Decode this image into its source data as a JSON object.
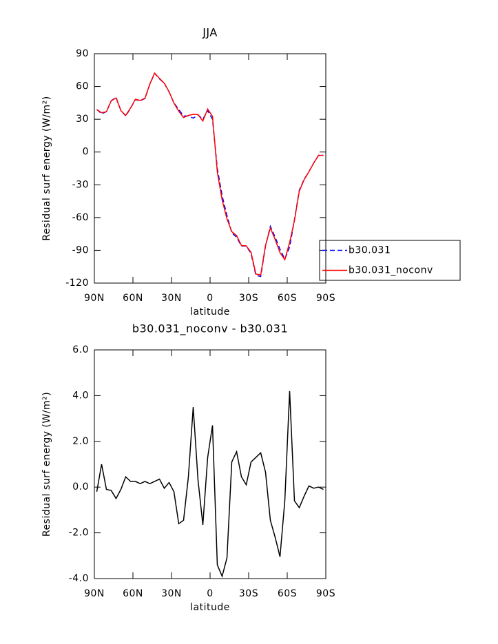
{
  "chart_data": [
    {
      "type": "line",
      "title": "JJA",
      "xlabel": "latitude",
      "ylabel": "Residual surf energy (W/m²)",
      "x": [
        88.125,
        84.375,
        80.625,
        76.875,
        73.125,
        69.375,
        65.625,
        61.875,
        58.125,
        54.375,
        50.625,
        46.875,
        43.125,
        39.375,
        35.625,
        31.875,
        28.125,
        24.375,
        20.625,
        16.875,
        13.125,
        9.375,
        5.625,
        1.875,
        -1.875,
        -5.625,
        -9.375,
        -13.125,
        -16.875,
        -20.625,
        -24.375,
        -28.125,
        -31.875,
        -35.625,
        -39.375,
        -43.125,
        -46.875,
        -50.625,
        -54.375,
        -58.125,
        -61.875,
        -65.625,
        -69.375,
        -73.125,
        -76.875,
        -80.625,
        -84.375,
        -88.125
      ],
      "series": [
        {
          "name": "b30.031",
          "color": "#0000ff",
          "dash": true,
          "values": [
            39,
            35,
            37,
            47,
            50,
            38,
            33,
            40,
            48,
            47,
            49,
            62,
            72,
            67,
            63,
            55,
            45,
            39,
            33,
            33,
            31,
            34,
            30,
            38,
            30,
            -15,
            -40,
            -58,
            -74,
            -78,
            -86,
            -86,
            -93,
            -113,
            -114,
            -86,
            -68,
            -78,
            -89,
            -98,
            -87,
            -62,
            -35,
            -25,
            -18,
            -10,
            -3,
            -3
          ]
        },
        {
          "name": "b30.031_noconv",
          "color": "#ff0000",
          "dash": false,
          "values": [
            38.8,
            36,
            36.9,
            46.9,
            49.5,
            37.9,
            33.5,
            40.3,
            48.3,
            47.2,
            49.3,
            62.2,
            72.3,
            67.4,
            63,
            55.2,
            44.8,
            37.4,
            31.6,
            33.5,
            34.5,
            34.3,
            28.4,
            39.3,
            32.7,
            -18.4,
            -43.9,
            -61.1,
            -72.9,
            -76.5,
            -85.6,
            -85.9,
            -91.9,
            -111.7,
            -112.5,
            -85.4,
            -69.5,
            -80.2,
            -92.1,
            -98.6,
            -82.8,
            -62.6,
            -35.9,
            -25.4,
            -18,
            -10.1,
            -3,
            -3.1
          ]
        }
      ],
      "xlim": [
        90,
        -90
      ],
      "xticks": [
        {
          "value": 90,
          "label": "90N"
        },
        {
          "value": 60,
          "label": "60N"
        },
        {
          "value": 30,
          "label": "30N"
        },
        0,
        {
          "value": -30,
          "label": "30S"
        },
        {
          "value": -60,
          "label": "60S"
        },
        {
          "value": -90,
          "label": "90S"
        }
      ],
      "ylim": [
        -120,
        90
      ],
      "yticks": [
        -120,
        -90,
        -60,
        -30,
        0,
        30,
        60,
        90
      ],
      "legend": "right"
    },
    {
      "type": "line",
      "title": "b30.031_noconv - b30.031",
      "xlabel": "latitude",
      "ylabel": "Residual surf energy (W/m²)",
      "x": [
        88.125,
        84.375,
        80.625,
        76.875,
        73.125,
        69.375,
        65.625,
        61.875,
        58.125,
        54.375,
        50.625,
        46.875,
        43.125,
        39.375,
        35.625,
        31.875,
        28.125,
        24.375,
        20.625,
        16.875,
        13.125,
        9.375,
        5.625,
        1.875,
        -1.875,
        -5.625,
        -9.375,
        -13.125,
        -16.875,
        -20.625,
        -24.375,
        -28.125,
        -31.875,
        -35.625,
        -39.375,
        -43.125,
        -46.875,
        -50.625,
        -54.375,
        -58.125,
        -61.875,
        -65.625,
        -69.375,
        -73.125,
        -76.875,
        -80.625,
        -84.375,
        -88.125
      ],
      "series": [
        {
          "color": "#000000",
          "dash": false,
          "values": [
            -0.2,
            1.0,
            -0.1,
            -0.15,
            -0.5,
            -0.1,
            0.45,
            0.25,
            0.25,
            0.15,
            0.25,
            0.15,
            0.25,
            0.35,
            -0.05,
            0.2,
            -0.2,
            -1.6,
            -1.45,
            0.45,
            3.5,
            0.3,
            -1.65,
            1.3,
            2.7,
            -3.4,
            -3.9,
            -3.1,
            1.1,
            1.55,
            0.45,
            0.1,
            1.1,
            1.3,
            1.5,
            0.65,
            -1.45,
            -2.2,
            -3.05,
            -0.6,
            4.2,
            -0.6,
            -0.9,
            -0.4,
            0.05,
            -0.05,
            0.0,
            -0.1
          ]
        }
      ],
      "xlim": [
        90,
        -90
      ],
      "xticks": [
        {
          "value": 90,
          "label": "90N"
        },
        {
          "value": 60,
          "label": "60N"
        },
        {
          "value": 30,
          "label": "30N"
        },
        0,
        {
          "value": -30,
          "label": "30S"
        },
        {
          "value": -60,
          "label": "60S"
        },
        {
          "value": -90,
          "label": "90S"
        }
      ],
      "ylim": [
        -4,
        6
      ],
      "yticks": [
        {
          "value": -4,
          "label": "-4.0"
        },
        {
          "value": -2,
          "label": "-2.0"
        },
        {
          "value": 0,
          "label": "0.0"
        },
        {
          "value": 2,
          "label": "2.0"
        },
        {
          "value": 4,
          "label": "4.0"
        },
        {
          "value": 6,
          "label": "6.0"
        }
      ]
    }
  ]
}
